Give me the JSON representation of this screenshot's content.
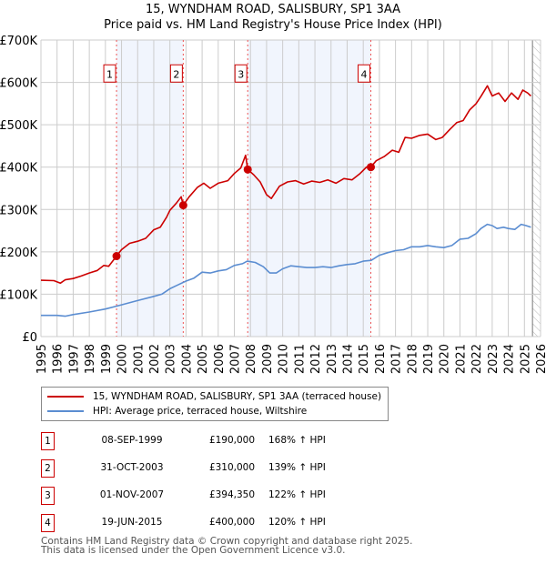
{
  "title_line1": "15, WYNDHAM ROAD, SALISBURY, SP1 3AA",
  "title_line2": "Price paid vs. HM Land Registry's House Price Index (HPI)",
  "chart_data": {
    "type": "line",
    "xlim": [
      1995,
      2026
    ],
    "ylim": [
      0,
      700000
    ],
    "grid": true,
    "y_ticks": [
      0,
      100000,
      200000,
      300000,
      400000,
      500000,
      600000,
      700000
    ],
    "y_tick_labels": [
      "£0",
      "£100K",
      "£200K",
      "£300K",
      "£400K",
      "£500K",
      "£600K",
      "£700K"
    ],
    "x_ticks": [
      1995,
      1996,
      1997,
      1998,
      1999,
      2000,
      2001,
      2002,
      2003,
      2004,
      2005,
      2006,
      2007,
      2008,
      2009,
      2010,
      2011,
      2012,
      2013,
      2014,
      2015,
      2016,
      2017,
      2018,
      2019,
      2020,
      2021,
      2022,
      2023,
      2024,
      2025,
      2026
    ],
    "hatched_from": 2025.5,
    "shaded_periods": [
      [
        1999.69,
        2003.83
      ],
      [
        2007.83,
        2015.47
      ]
    ],
    "series": [
      {
        "name": "15, WYNDHAM ROAD, SALISBURY, SP1 3AA (terraced house)",
        "color": "#cc0000",
        "x": [
          1995,
          1995.8,
          1996.2,
          1996.5,
          1997,
          1997.5,
          1998,
          1998.5,
          1998.9,
          1999.2,
          1999.69,
          2000,
          2000.5,
          2001,
          2001.5,
          2002,
          2002.4,
          2002.8,
          2003,
          2003.4,
          2003.7,
          2003.83,
          2004.2,
          2004.7,
          2005.1,
          2005.5,
          2006,
          2006.6,
          2007,
          2007.4,
          2007.7,
          2007.83,
          2008.2,
          2008.6,
          2009,
          2009.3,
          2009.8,
          2010.3,
          2010.8,
          2011.3,
          2011.8,
          2012.3,
          2012.8,
          2013.3,
          2013.8,
          2014.3,
          2014.8,
          2015.2,
          2015.47,
          2015.8,
          2016.3,
          2016.8,
          2017.2,
          2017.6,
          2018,
          2018.5,
          2019,
          2019.5,
          2019.9,
          2020.4,
          2020.8,
          2021.2,
          2021.6,
          2022,
          2022.3,
          2022.7,
          2023,
          2023.4,
          2023.8,
          2024.2,
          2024.6,
          2024.9,
          2025.2,
          2025.4
        ],
        "y": [
          133000,
          132000,
          126000,
          134000,
          137000,
          143000,
          150000,
          156000,
          168000,
          166000,
          190000,
          205000,
          220000,
          225000,
          232000,
          252000,
          258000,
          282000,
          298000,
          315000,
          330000,
          310000,
          330000,
          352000,
          362000,
          350000,
          362000,
          368000,
          385000,
          398000,
          428000,
          394350,
          382000,
          365000,
          335000,
          326000,
          355000,
          365000,
          368000,
          360000,
          367000,
          364000,
          370000,
          362000,
          373000,
          370000,
          385000,
          400000,
          400000,
          415000,
          425000,
          440000,
          435000,
          470000,
          468000,
          475000,
          478000,
          465000,
          470000,
          490000,
          505000,
          510000,
          535000,
          550000,
          567000,
          592000,
          568000,
          575000,
          555000,
          575000,
          560000,
          582000,
          575000,
          568000
        ]
      },
      {
        "name": "HPI: Average price, terraced house, Wiltshire",
        "color": "#5b8dd1",
        "x": [
          1995,
          1996,
          1996.5,
          1997,
          1998,
          1999,
          2000,
          2001,
          2002,
          2002.5,
          2003,
          2003.5,
          2004,
          2004.5,
          2005,
          2005.5,
          2006,
          2006.5,
          2007,
          2007.5,
          2007.8,
          2008.3,
          2008.8,
          2009.2,
          2009.6,
          2010,
          2010.5,
          2011,
          2011.5,
          2012,
          2012.5,
          2013,
          2013.5,
          2014,
          2014.5,
          2015,
          2015.5,
          2016,
          2016.5,
          2017,
          2017.5,
          2018,
          2018.5,
          2019,
          2019.5,
          2020,
          2020.5,
          2021,
          2021.5,
          2022,
          2022.3,
          2022.7,
          2023,
          2023.3,
          2023.7,
          2024,
          2024.4,
          2024.8,
          2025.1,
          2025.4
        ],
        "y": [
          50000,
          50000,
          48000,
          52000,
          58000,
          65000,
          75000,
          85000,
          95000,
          100000,
          113000,
          122000,
          131000,
          138000,
          152000,
          150000,
          155000,
          158000,
          168000,
          172000,
          178000,
          175000,
          165000,
          150000,
          150000,
          160000,
          167000,
          165000,
          163000,
          163000,
          165000,
          163000,
          167000,
          170000,
          172000,
          178000,
          180000,
          192000,
          198000,
          203000,
          205000,
          212000,
          212000,
          215000,
          212000,
          210000,
          215000,
          230000,
          232000,
          243000,
          255000,
          265000,
          262000,
          255000,
          258000,
          255000,
          253000,
          265000,
          262000,
          258000
        ]
      }
    ],
    "sales": [
      {
        "label": "1",
        "x": 1999.69,
        "y": 190000
      },
      {
        "label": "2",
        "x": 2003.83,
        "y": 310000
      },
      {
        "label": "3",
        "x": 2007.83,
        "y": 394350
      },
      {
        "label": "4",
        "x": 2015.47,
        "y": 400000
      }
    ]
  },
  "legend": {
    "property": "15, WYNDHAM ROAD, SALISBURY, SP1 3AA (terraced house)",
    "hpi": "HPI: Average price, terraced house, Wiltshire"
  },
  "transactions": [
    {
      "num": "1",
      "date": "08-SEP-1999",
      "price": "£190,000",
      "hpi": "168% ↑ HPI"
    },
    {
      "num": "2",
      "date": "31-OCT-2003",
      "price": "£310,000",
      "hpi": "139% ↑ HPI"
    },
    {
      "num": "3",
      "date": "01-NOV-2007",
      "price": "£394,350",
      "hpi": "122% ↑ HPI"
    },
    {
      "num": "4",
      "date": "19-JUN-2015",
      "price": "£400,000",
      "hpi": "120% ↑ HPI"
    }
  ],
  "footer": {
    "line1": "Contains HM Land Registry data © Crown copyright and database right 2025.",
    "line2": "This data is licensed under the Open Government Licence v3.0."
  }
}
